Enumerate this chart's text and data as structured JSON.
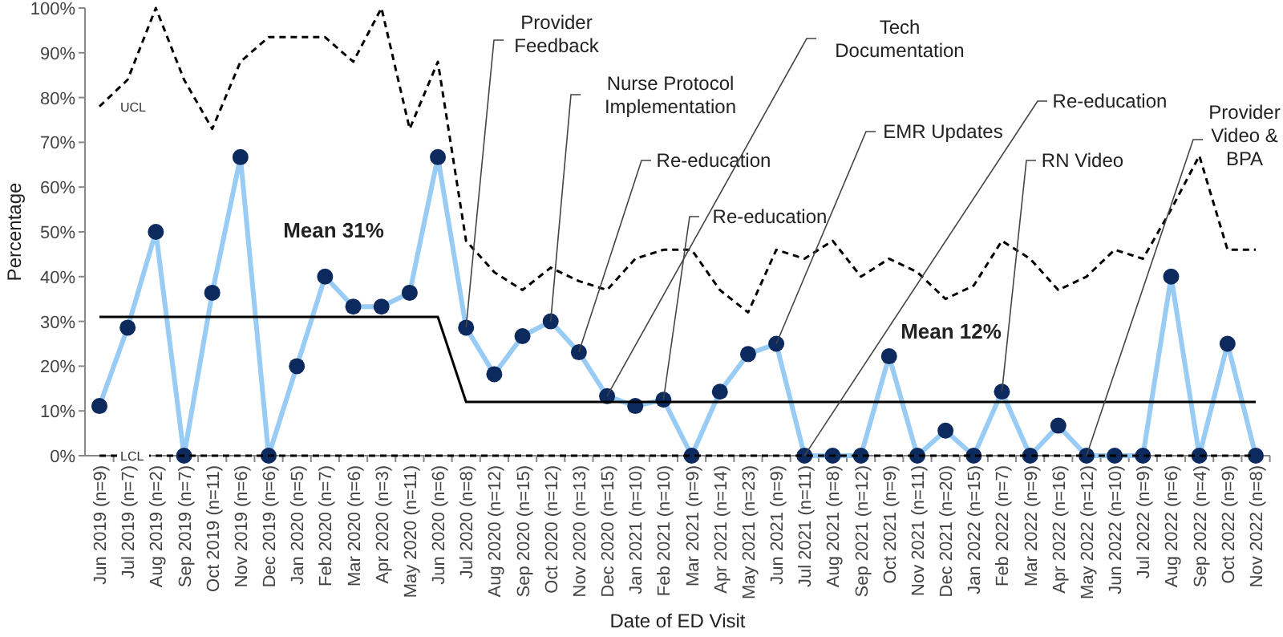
{
  "chart_data": {
    "type": "line",
    "xlabel": "Date of ED Visit",
    "ylabel": "Percentage",
    "categories": [
      "Jun 2019 (n=9)",
      "Jul 2019 (n=7)",
      "Aug 2019 (n=2)",
      "Sep 2019 (n=7)",
      "Oct 2019 (n=11)",
      "Nov 2019 (n=6)",
      "Dec 2019 (n=6)",
      "Jan 2020 (n=5)",
      "Feb 2020 (n=7)",
      "Mar 2020 (n=6)",
      "Apr 2020 (n=3)",
      "May 2020 (n=11)",
      "Jun 2020 (n=6)",
      "Jul 2020 (n=8)",
      "Aug 2020 (n=12)",
      "Sep 2020 (n=15)",
      "Oct 2020 (n=12)",
      "Nov 2020 (n=13)",
      "Dec 2020 (n=15)",
      "Jan 2021 (n=10)",
      "Feb 2021 (n=10)",
      "Mar 2021 (n=9)",
      "Apr 2021 (n=14)",
      "May 2021 (n=23)",
      "Jun 2021 (n=9)",
      "Jul 2021 (n=11)",
      "Aug 2021 (n=8)",
      "Sep 2021 (n=12)",
      "Oct 2021 (n=9)",
      "Nov 2021 (n=11)",
      "Dec 2021 (n=20)",
      "Jan 2022 (n=15)",
      "Feb 2022 (n=7)",
      "Mar 2022 (n=9)",
      "Apr 2022 (n=16)",
      "May 2022 (n=12)",
      "Jun 2022 (n=10)",
      "Jul 2022 (n=9)",
      "Aug 2022 (n=6)",
      "Sep 2022 (n=4)",
      "Oct 2022 (n=9)",
      "Nov 2022 (n=8)"
    ],
    "series": [
      {
        "color": "#99ccf5",
        "marker": "circle",
        "line_style": "solid",
        "values": [
          11.1,
          28.6,
          50,
          0,
          36.4,
          66.7,
          0,
          20,
          40,
          33.3,
          33.3,
          36.4,
          66.7,
          28.6,
          18.2,
          26.7,
          30,
          23.1,
          13.3,
          11.1,
          12.5,
          0,
          14.3,
          22.7,
          25,
          0,
          0,
          0,
          22.2,
          0,
          5.6,
          0,
          14.3,
          0,
          6.7,
          0,
          0,
          0,
          40,
          0,
          25,
          0
        ]
      },
      {
        "name": "UCL",
        "color": "#000000",
        "marker": "none",
        "line_style": "dashed",
        "values": [
          78,
          84,
          100,
          84,
          73,
          88,
          93.5,
          93.5,
          93.5,
          88,
          100,
          73,
          88,
          48,
          41,
          37,
          42,
          39,
          37,
          44,
          46,
          46,
          37,
          32,
          46,
          44,
          48,
          40,
          44,
          41,
          35,
          38,
          48,
          44,
          37,
          40,
          46,
          44,
          55,
          67,
          46,
          46
        ]
      },
      {
        "name": "LCL",
        "color": "#000000",
        "marker": "none",
        "line_style": "dashed",
        "values": [
          0,
          0,
          0,
          0,
          0,
          0,
          0,
          0,
          0,
          0,
          0,
          0,
          0,
          0,
          0,
          0,
          0,
          0,
          0,
          0,
          0,
          0,
          0,
          0,
          0,
          0,
          0,
          0,
          0,
          0,
          0,
          0,
          0,
          0,
          0,
          0,
          0,
          0,
          0,
          0,
          0,
          0
        ]
      },
      {
        "color": "#000000",
        "marker": "none",
        "line_style": "solid",
        "values": [
          31,
          31,
          31,
          31,
          31,
          31,
          31,
          31,
          31,
          31,
          31,
          31,
          31,
          12,
          12,
          12,
          12,
          12,
          12,
          12,
          12,
          12,
          12,
          12,
          12,
          12,
          12,
          12,
          12,
          12,
          12,
          12,
          12,
          12,
          12,
          12,
          12,
          12,
          12,
          12,
          12,
          12
        ]
      }
    ],
    "ylim": [
      0,
      100
    ],
    "yticks": [
      {
        "value": 0,
        "label": "0%"
      },
      {
        "value": 10,
        "label": "10%"
      },
      {
        "value": 20,
        "label": "20%"
      },
      {
        "value": 30,
        "label": "30%"
      },
      {
        "value": 40,
        "label": "40%"
      },
      {
        "value": 50,
        "label": "50%"
      },
      {
        "value": 60,
        "label": "60%"
      },
      {
        "value": 70,
        "label": "70%"
      },
      {
        "value": 80,
        "label": "80%"
      },
      {
        "value": 90,
        "label": "90%"
      },
      {
        "value": 100,
        "label": "100%"
      }
    ],
    "grid": false,
    "annotations": [
      {
        "text": "Provider\nFeedback",
        "x": "Jul 2020 (n=8)",
        "y": 28.6
      },
      {
        "text": "Nurse Protocol\nImplementation",
        "x": "Oct 2020 (n=12)",
        "y": 30
      },
      {
        "text": "Re-education",
        "x": "Nov 2020 (n=13)",
        "y": 23.1
      },
      {
        "text": "Tech\nDocumentation",
        "x": "Dec 2020 (n=15)",
        "y": 13.3
      },
      {
        "text": "Re-education",
        "x": "Feb 2021 (n=10)",
        "y": 12.5
      },
      {
        "text": "EMR Updates",
        "x": "Jun 2021 (n=9)",
        "y": 25
      },
      {
        "text": "Re-education",
        "x": "Jul 2021 (n=11)",
        "y": 0
      },
      {
        "text": "RN Video",
        "x": "Feb 2022 (n=7)",
        "y": 14.3
      },
      {
        "text": "Provider\nVideo &\nBPA",
        "x": "May 2022 (n=12)",
        "y": 0
      },
      "Mean 31%",
      "Mean 12%"
    ]
  }
}
